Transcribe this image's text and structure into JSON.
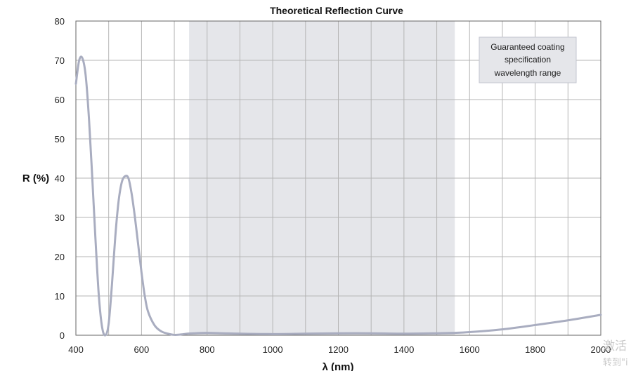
{
  "chart_data": {
    "type": "line",
    "title": "Theoretical Reflection Curve",
    "xlabel": "λ (nm)",
    "ylabel": "R (%)",
    "xlim": [
      400,
      2000
    ],
    "ylim": [
      0,
      80
    ],
    "x_ticks": [
      400,
      600,
      800,
      1000,
      1200,
      1400,
      1600,
      1800,
      2000
    ],
    "y_ticks": [
      0,
      10,
      20,
      30,
      40,
      50,
      60,
      70,
      80
    ],
    "x_gridlines": [
      400,
      500,
      600,
      700,
      800,
      900,
      1000,
      1100,
      1200,
      1300,
      1400,
      1500,
      1600,
      1700,
      1800,
      1900,
      2000
    ],
    "grid": true,
    "shaded_region": {
      "x_range": [
        745,
        1555
      ],
      "color": "#e5e6ea"
    },
    "annotation": {
      "lines": [
        "Guaranteed coating",
        "specification",
        "wavelength range"
      ]
    },
    "series": [
      {
        "color": "#a9adc0",
        "x": [
          400,
          410,
          420,
          430,
          440,
          450,
          460,
          470,
          480,
          490,
          500,
          510,
          520,
          530,
          540,
          550,
          560,
          570,
          580,
          590,
          600,
          610,
          620,
          640,
          660,
          680,
          700,
          720,
          740,
          760,
          800,
          850,
          900,
          1000,
          1100,
          1200,
          1300,
          1400,
          1500,
          1550,
          1600,
          1700,
          1800,
          1900,
          2000
        ],
        "y": [
          64,
          70,
          70.5,
          66,
          55,
          40,
          24,
          10,
          2,
          0,
          3,
          13,
          25,
          34,
          39,
          40.5,
          40,
          36,
          30,
          23,
          16,
          10,
          6,
          2.5,
          1,
          0.4,
          0.1,
          0.2,
          0.4,
          0.5,
          0.6,
          0.5,
          0.4,
          0.3,
          0.4,
          0.5,
          0.5,
          0.4,
          0.5,
          0.6,
          0.8,
          1.5,
          2.6,
          3.8,
          5.2
        ]
      }
    ]
  },
  "watermark": {
    "line1": "激活",
    "line2": "转到\"i"
  }
}
